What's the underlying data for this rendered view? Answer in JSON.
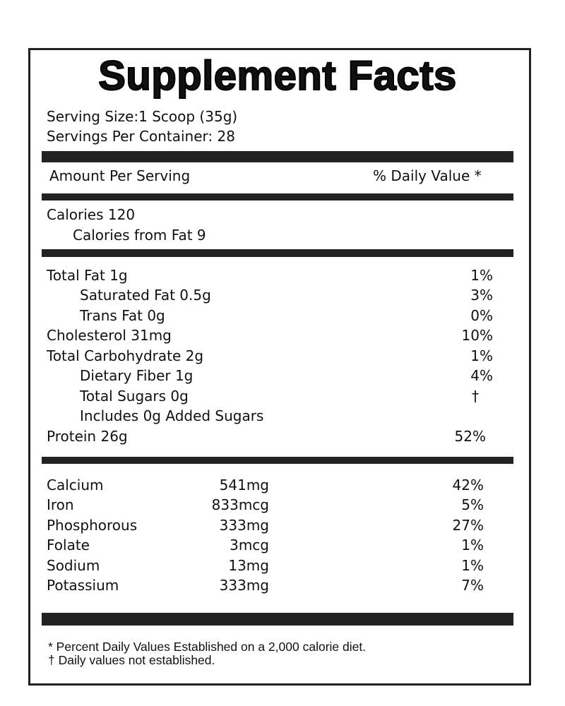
{
  "title": "Supplement Facts",
  "serving": [
    "Serving Size:1 Scoop (35g)",
    "Servings Per Container: 28"
  ],
  "header": {
    "amount": "Amount Per Serving",
    "daily_value": "% Daily Value *"
  },
  "calories": [
    "Calories 120",
    "Calories from Fat 9"
  ],
  "nutrients": [
    {
      "name": "Total Fat 1g",
      "dv": "1%"
    },
    {
      "name": "Saturated Fat  0.5g",
      "dv": "3%"
    },
    {
      "name": "Trans Fat  0g",
      "dv": "0%"
    },
    {
      "name": "Cholesterol  31mg",
      "dv": "10%"
    },
    {
      "name": "Total Carbohydrate 2g",
      "dv": "1%"
    },
    {
      "name": "Dietary Fiber  1g",
      "dv": "4%"
    },
    {
      "name": "Total Sugars  0g",
      "dv": "†"
    },
    {
      "name": "Includes 0g Added Sugars"
    },
    {
      "name": "Protein 26g",
      "dv": "52%"
    }
  ],
  "minerals": [
    {
      "name": "Calcium",
      "amount": "541mg",
      "dv": "42%"
    },
    {
      "name": "Iron",
      "amount": "833mcg",
      "dv": "5%"
    },
    {
      "name": "Phosphorous",
      "amount": "333mg",
      "dv": "27%"
    },
    {
      "name": "Folate",
      "amount": "3mcg",
      "dv": "1%"
    },
    {
      "name": "Sodium",
      "amount": "13mg",
      "dv": "1%"
    },
    {
      "name": "Potassium",
      "amount": "333mg",
      "dv": "7%"
    }
  ],
  "footnotes": [
    "* Percent Daily Values Established on a 2,000 calorie diet.",
    "† Daily values not established."
  ]
}
